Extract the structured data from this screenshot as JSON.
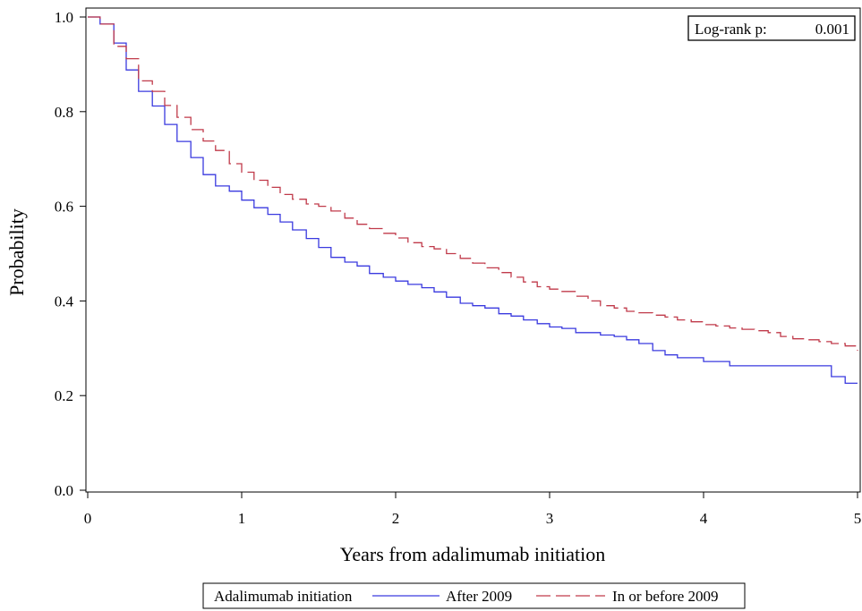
{
  "chart_data": {
    "type": "line",
    "step": true,
    "xlabel": "Years from adalimumab initiation",
    "ylabel": "Probability",
    "xlim": [
      0,
      5
    ],
    "ylim": [
      0,
      1
    ],
    "x_ticks": [
      0,
      1,
      2,
      3,
      4,
      5
    ],
    "x_tick_labels": [
      "0",
      "1",
      "2",
      "3",
      "4",
      "5"
    ],
    "y_ticks": [
      0,
      0.2,
      0.4,
      0.6,
      0.8,
      1.0
    ],
    "y_tick_labels": [
      "0.0",
      "0.2",
      "0.4",
      "0.6",
      "0.8",
      "1.0"
    ],
    "grid": false,
    "annotation": {
      "label": "Log-rank p:",
      "value": "0.001",
      "position": "top-right"
    },
    "legend": {
      "title": "Adalimumab initiation",
      "position": "bottom"
    },
    "series": [
      {
        "name": "After 2009",
        "color": "#3a3adf",
        "dash": "solid",
        "x": [
          0,
          0.08,
          0.17,
          0.25,
          0.33,
          0.42,
          0.5,
          0.58,
          0.67,
          0.75,
          0.83,
          0.92,
          1.0,
          1.08,
          1.17,
          1.25,
          1.33,
          1.42,
          1.5,
          1.58,
          1.67,
          1.75,
          1.83,
          1.92,
          2.0,
          2.08,
          2.17,
          2.25,
          2.33,
          2.42,
          2.5,
          2.58,
          2.67,
          2.75,
          2.83,
          2.92,
          3.0,
          3.08,
          3.17,
          3.33,
          3.42,
          3.5,
          3.58,
          3.67,
          3.75,
          3.83,
          4.0,
          4.17,
          4.5,
          4.83,
          4.92,
          5.0
        ],
        "y": [
          1.0,
          0.985,
          0.945,
          0.888,
          0.843,
          0.812,
          0.773,
          0.737,
          0.703,
          0.667,
          0.643,
          0.632,
          0.613,
          0.597,
          0.583,
          0.567,
          0.55,
          0.532,
          0.513,
          0.492,
          0.482,
          0.474,
          0.458,
          0.45,
          0.442,
          0.435,
          0.428,
          0.419,
          0.408,
          0.395,
          0.39,
          0.385,
          0.373,
          0.368,
          0.36,
          0.352,
          0.345,
          0.342,
          0.333,
          0.328,
          0.325,
          0.318,
          0.31,
          0.295,
          0.286,
          0.28,
          0.272,
          0.263,
          0.263,
          0.24,
          0.226,
          0.226
        ]
      },
      {
        "name": "In or before 2009",
        "color": "#c03a4a",
        "dash": "dashed",
        "x": [
          0,
          0.08,
          0.17,
          0.25,
          0.33,
          0.42,
          0.5,
          0.58,
          0.67,
          0.75,
          0.83,
          0.92,
          1.0,
          1.08,
          1.17,
          1.25,
          1.33,
          1.42,
          1.5,
          1.58,
          1.67,
          1.75,
          1.83,
          1.92,
          2.0,
          2.08,
          2.17,
          2.25,
          2.33,
          2.42,
          2.5,
          2.58,
          2.67,
          2.75,
          2.83,
          2.92,
          3.0,
          3.08,
          3.17,
          3.25,
          3.33,
          3.42,
          3.5,
          3.58,
          3.67,
          3.75,
          3.83,
          3.92,
          4.0,
          4.08,
          4.17,
          4.25,
          4.33,
          4.42,
          4.5,
          4.58,
          4.67,
          4.75,
          4.83,
          4.92,
          5.0
        ],
        "y": [
          1.0,
          0.985,
          0.938,
          0.912,
          0.865,
          0.843,
          0.813,
          0.788,
          0.762,
          0.738,
          0.718,
          0.69,
          0.672,
          0.655,
          0.64,
          0.625,
          0.615,
          0.605,
          0.6,
          0.59,
          0.575,
          0.562,
          0.553,
          0.543,
          0.533,
          0.523,
          0.515,
          0.51,
          0.5,
          0.49,
          0.48,
          0.47,
          0.46,
          0.45,
          0.44,
          0.43,
          0.425,
          0.42,
          0.41,
          0.4,
          0.39,
          0.385,
          0.378,
          0.375,
          0.37,
          0.366,
          0.36,
          0.356,
          0.35,
          0.347,
          0.343,
          0.34,
          0.337,
          0.333,
          0.325,
          0.32,
          0.318,
          0.314,
          0.31,
          0.305,
          0.295
        ]
      }
    ]
  }
}
